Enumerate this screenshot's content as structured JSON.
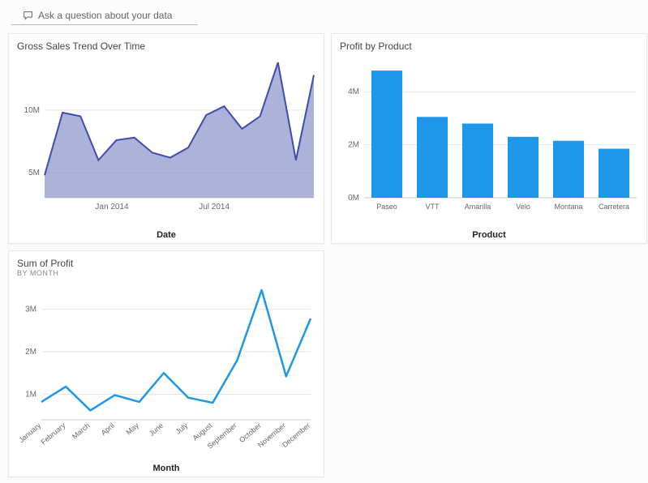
{
  "qa": {
    "placeholder": "Ask a question about your data"
  },
  "gross_sales": {
    "type": "area",
    "title": "Gross Sales Trend Over Time",
    "x_axis_label": "Date",
    "y_ticks": [
      5,
      10
    ],
    "y_tick_labels": [
      "5M",
      "10M"
    ],
    "ylim": [
      3,
      14
    ],
    "x_tick_labels": [
      "Jan 2014",
      "Jul 2014"
    ],
    "x_tick_positions": [
      0.25,
      0.63
    ],
    "values": [
      4.8,
      9.8,
      9.5,
      6.0,
      7.6,
      7.8,
      6.6,
      6.2,
      7.0,
      9.6,
      10.3,
      8.5,
      9.5,
      13.8,
      6.0,
      12.8
    ],
    "stroke_color": "#3b4db0",
    "fill_color": "#8a92c9",
    "fill_opacity": 0.7,
    "line_width": 2,
    "axis_fontsize": 10,
    "label_fontsize": 11
  },
  "profit_by_product": {
    "type": "bar",
    "title": "Profit by Product",
    "x_axis_label": "Product",
    "categories": [
      "Paseo",
      "VTT",
      "Amarilla",
      "Velo",
      "Montana",
      "Carretera"
    ],
    "values": [
      4.8,
      3.05,
      2.8,
      2.3,
      2.15,
      1.85
    ],
    "y_ticks": [
      0,
      2,
      4
    ],
    "y_tick_labels": [
      "0M",
      "2M",
      "4M"
    ],
    "ylim": [
      0,
      5.2
    ],
    "bar_color": "#1f97e8",
    "bar_width": 0.68,
    "axis_fontsize": 10,
    "label_fontsize": 11
  },
  "sum_of_profit": {
    "type": "line",
    "title": "Sum of Profit",
    "subtitle": "BY MONTH",
    "x_axis_label": "Month",
    "categories": [
      "January",
      "February",
      "March",
      "April",
      "May",
      "June",
      "July",
      "August",
      "September",
      "October",
      "November",
      "December"
    ],
    "values": [
      0.82,
      1.18,
      0.62,
      0.98,
      0.82,
      1.5,
      0.92,
      0.8,
      1.8,
      3.45,
      1.42,
      2.78
    ],
    "y_ticks": [
      1,
      2,
      3
    ],
    "y_tick_labels": [
      "1M",
      "2M",
      "3M"
    ],
    "ylim": [
      0.4,
      3.6
    ],
    "stroke_color": "#1f97e8",
    "line_width": 2.5,
    "axis_fontsize": 9,
    "label_fontsize": 11
  },
  "colors": {
    "background": "#fcfcfc",
    "card_bg": "#ffffff",
    "grid": "#e6e6e6",
    "text": "#333333",
    "text_muted": "#666666"
  }
}
